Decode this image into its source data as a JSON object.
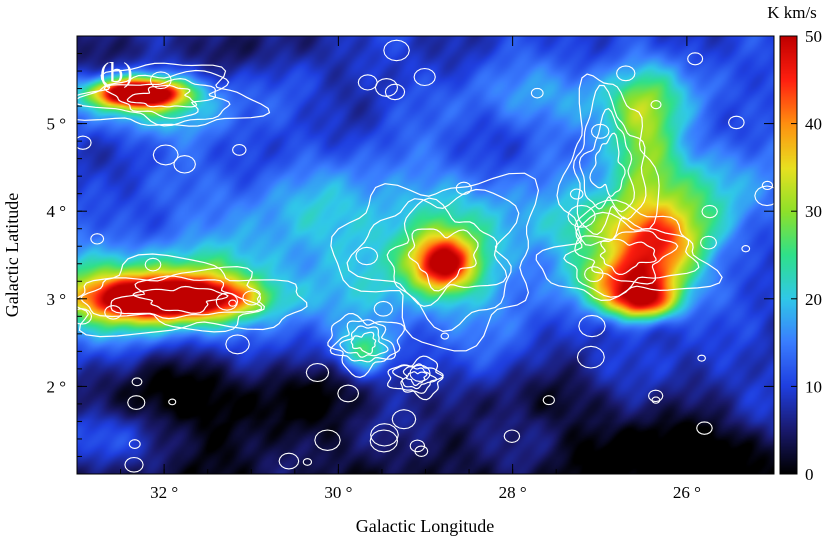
{
  "chart_data": {
    "type": "heatmap",
    "panel_label": "(b)",
    "xlabel": "Galactic Longitude",
    "ylabel": "Galactic Latitude",
    "xlim": [
      33.0,
      25.0
    ],
    "ylim": [
      1.0,
      6.0
    ],
    "xticks": [
      {
        "value": 32,
        "label": "32 °"
      },
      {
        "value": 30,
        "label": "30 °"
      },
      {
        "value": 28,
        "label": "28 °"
      },
      {
        "value": 26,
        "label": "26 °"
      }
    ],
    "yticks": [
      {
        "value": 2,
        "label": "2 °"
      },
      {
        "value": 3,
        "label": "3 °"
      },
      {
        "value": 4,
        "label": "4 °"
      },
      {
        "value": 5,
        "label": "5 °"
      }
    ],
    "colorbar": {
      "unit": "K km/s",
      "range": [
        0,
        50
      ],
      "ticks": [
        0,
        10,
        20,
        30,
        40,
        50
      ]
    },
    "colormap": [
      "#000000",
      "#1a1a6e",
      "#1f3fe0",
      "#3a7dff",
      "#30c8e8",
      "#2fe08a",
      "#8ee02a",
      "#e8e020",
      "#ff9010",
      "#ff2010",
      "#c00000"
    ],
    "background_level": 9,
    "emission_components": [
      {
        "l": 32.3,
        "b": 5.35,
        "peak": 50,
        "wl": 0.5,
        "wb": 0.16
      },
      {
        "l": 32.1,
        "b": 5.2,
        "peak": 14,
        "wl": 0.9,
        "wb": 0.35
      },
      {
        "l": 31.9,
        "b": 3.0,
        "peak": 36,
        "wl": 0.9,
        "wb": 0.22
      },
      {
        "l": 32.4,
        "b": 3.05,
        "peak": 20,
        "wl": 1.2,
        "wb": 0.45
      },
      {
        "l": 31.5,
        "b": 3.1,
        "peak": 10,
        "wl": 1.6,
        "wb": 0.5
      },
      {
        "l": 28.8,
        "b": 3.4,
        "peak": 30,
        "wl": 0.35,
        "wb": 0.3
      },
      {
        "l": 28.8,
        "b": 3.5,
        "peak": 14,
        "wl": 1.1,
        "wb": 0.9
      },
      {
        "l": 26.6,
        "b": 3.2,
        "peak": 32,
        "wl": 0.6,
        "wb": 0.3
      },
      {
        "l": 26.5,
        "b": 2.95,
        "peak": 28,
        "wl": 0.4,
        "wb": 0.2
      },
      {
        "l": 26.3,
        "b": 3.6,
        "peak": 20,
        "wl": 0.5,
        "wb": 0.35
      },
      {
        "l": 26.5,
        "b": 4.8,
        "peak": 16,
        "wl": 0.4,
        "wb": 0.8
      },
      {
        "l": 26.0,
        "b": 4.2,
        "peak": 12,
        "wl": 1.2,
        "wb": 0.6
      },
      {
        "l": 26.8,
        "b": 3.8,
        "peak": 14,
        "wl": 0.9,
        "wb": 0.4
      },
      {
        "l": 29.7,
        "b": 2.4,
        "peak": 16,
        "wl": 0.3,
        "wb": 0.25
      },
      {
        "l": 30.5,
        "b": 4.0,
        "peak": 8,
        "wl": 1.5,
        "wb": 0.6
      },
      {
        "l": 27.0,
        "b": 5.3,
        "peak": 10,
        "wl": 1.5,
        "wb": 0.4
      },
      {
        "l": 32.8,
        "b": 1.4,
        "peak": 8,
        "wl": 0.5,
        "wb": 0.3
      }
    ],
    "dark_regions": [
      {
        "l": 26.0,
        "b": 1.3,
        "depth": 9,
        "wl": 1.2,
        "wb": 0.45
      },
      {
        "l": 27.5,
        "b": 1.8,
        "depth": 6,
        "wl": 1.0,
        "wb": 0.4
      },
      {
        "l": 30.5,
        "b": 1.8,
        "depth": 8,
        "wl": 1.5,
        "wb": 0.5
      },
      {
        "l": 32.0,
        "b": 1.9,
        "depth": 7,
        "wl": 1.0,
        "wb": 0.5
      },
      {
        "l": 32.5,
        "b": 5.8,
        "depth": 5,
        "wl": 0.6,
        "wb": 0.3
      },
      {
        "l": 31.0,
        "b": 5.9,
        "depth": 4,
        "wl": 1.0,
        "wb": 0.3
      }
    ],
    "contour_regions": [
      {
        "l": 32.0,
        "b": 5.3,
        "rl": 1.0,
        "rb": 0.35
      },
      {
        "l": 31.8,
        "b": 3.0,
        "rl": 1.3,
        "rb": 0.4
      },
      {
        "l": 28.8,
        "b": 3.5,
        "rl": 1.1,
        "rb": 0.9
      },
      {
        "l": 26.7,
        "b": 3.5,
        "rl": 0.9,
        "rb": 0.5
      },
      {
        "l": 26.9,
        "b": 4.5,
        "rl": 0.5,
        "rb": 0.9
      },
      {
        "l": 29.7,
        "b": 2.5,
        "rl": 0.4,
        "rb": 0.3
      },
      {
        "l": 29.1,
        "b": 2.1,
        "rl": 0.3,
        "rb": 0.2
      }
    ]
  }
}
